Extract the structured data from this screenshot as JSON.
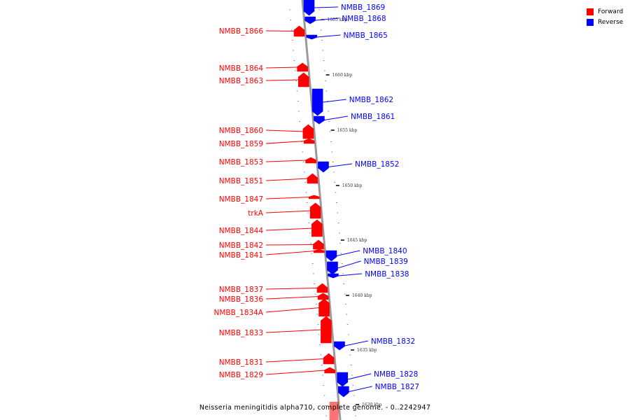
{
  "colors": {
    "forward": "#ff0000",
    "reverse": "#0000ff",
    "backbone": "#999999"
  },
  "legend": {
    "forward_label": "Forward",
    "reverse_label": "Reverse"
  },
  "caption": "Neisseria meningitidis alpha710, complete genome. - 0..2242947",
  "scale_labels": [
    "1665 kbp",
    "1660 kbp",
    "1655 kbp",
    "1650 kbp",
    "1645 kbp",
    "1640 kbp",
    "1635 kbp",
    "1630 kbp"
  ],
  "genes": {
    "forward": [
      "NMBB_1866",
      "NMBB_1864",
      "NMBB_1863",
      "NMBB_1860",
      "NMBB_1859",
      "NMBB_1853",
      "NMBB_1851",
      "NMBB_1847",
      "trkA",
      "NMBB_1844",
      "NMBB_1842",
      "NMBB_1841",
      "NMBB_1837",
      "NMBB_1836",
      "NMBB_1834A",
      "NMBB_1833",
      "NMBB_1831",
      "NMBB_1829"
    ],
    "reverse": [
      "NMBB_1869",
      "NMBB_1868",
      "NMBB_1865",
      "NMBB_1862",
      "NMBB_1861",
      "NMBB_1852",
      "NMBB_1840",
      "NMBB_1839",
      "NMBB_1838",
      "NMBB_1832",
      "NMBB_1828",
      "NMBB_1827"
    ]
  }
}
